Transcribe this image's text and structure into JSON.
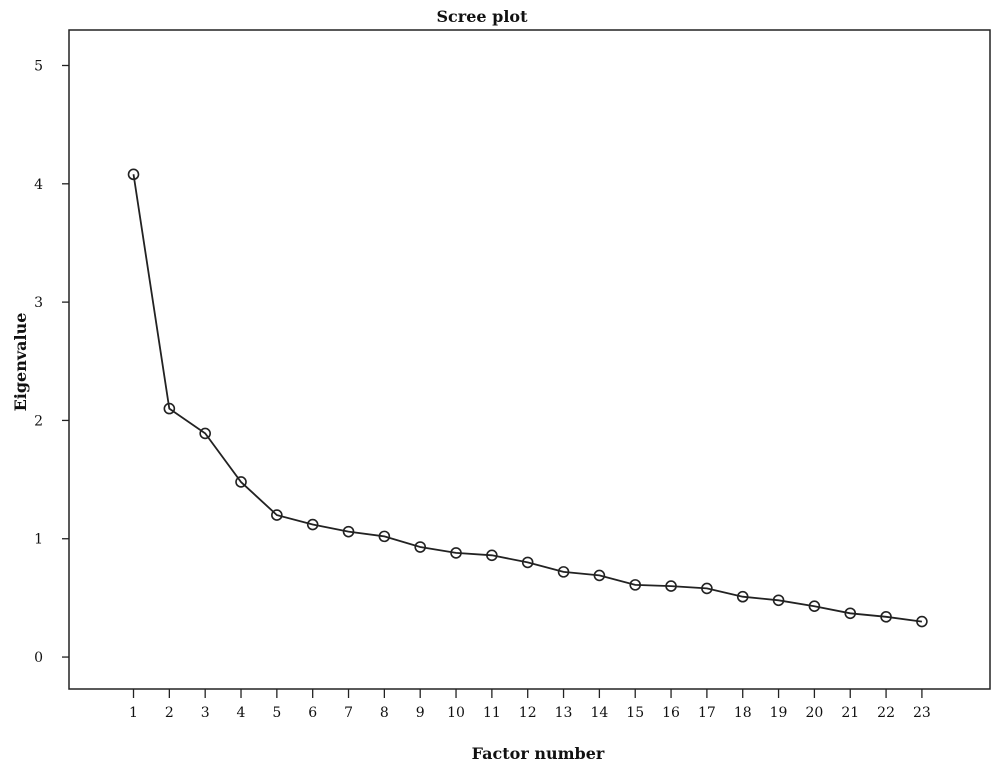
{
  "chart_data": {
    "type": "line",
    "title": "Scree plot",
    "xlabel": "Factor number",
    "ylabel": "Eigenvalue",
    "x": [
      1,
      2,
      3,
      4,
      5,
      6,
      7,
      8,
      9,
      10,
      11,
      12,
      13,
      14,
      15,
      16,
      17,
      18,
      19,
      20,
      21,
      22,
      23
    ],
    "x_tick_labels": [
      "1",
      "2",
      "3",
      "4",
      "5",
      "6",
      "7",
      "8",
      "9",
      "10",
      "11",
      "12",
      "13",
      "14",
      "15",
      "16",
      "17",
      "18",
      "19",
      "20",
      "21",
      "22",
      "23"
    ],
    "y_ticks": [
      0,
      1,
      2,
      3,
      4,
      5
    ],
    "y_tick_labels": [
      "0",
      "1",
      "2",
      "3",
      "4",
      "5"
    ],
    "ylim": [
      -0.27,
      5.3
    ],
    "xlim": [
      -0.8,
      24.9
    ],
    "grid": false,
    "series": [
      {
        "values": [
          4.08,
          2.1,
          1.89,
          1.48,
          1.2,
          1.12,
          1.06,
          1.02,
          0.93,
          0.88,
          0.86,
          0.8,
          0.72,
          0.69,
          0.61,
          0.6,
          0.58,
          0.51,
          0.48,
          0.43,
          0.37,
          0.34,
          0.3
        ]
      }
    ],
    "marker": "open-circle",
    "colors": {
      "line": "#222222",
      "frame": "#222222",
      "text": "#111111"
    }
  }
}
